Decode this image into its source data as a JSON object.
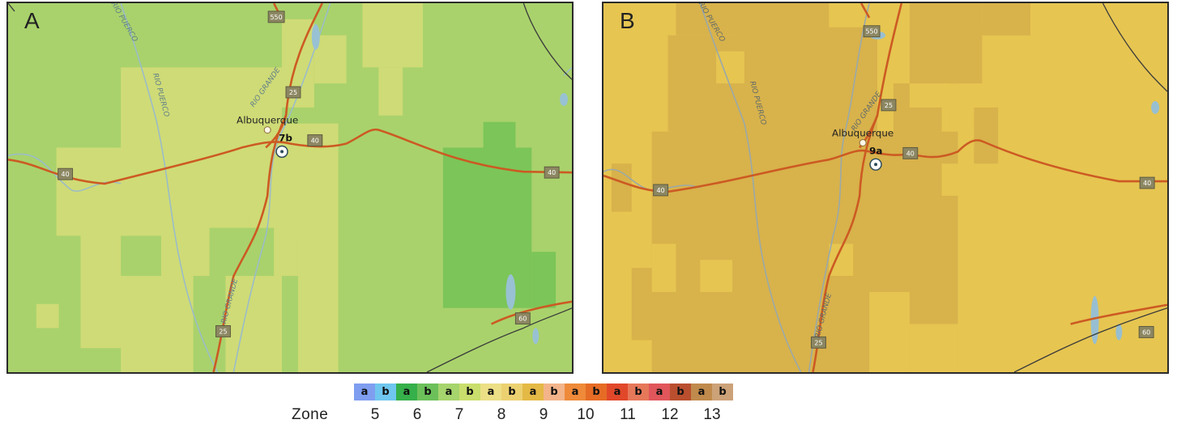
{
  "panel_a": {
    "letter": "A",
    "city": "Albuquerque",
    "zone_marker": "7b",
    "interstate_40": "40",
    "interstate_25": "25",
    "route_550": "550",
    "route_60": "60",
    "river_grande": "RIO GRANDE",
    "river_puerco": "RIO PUERCO",
    "base_color": "#a9d26c",
    "light_color": "#cfdb76",
    "dark_color": "#7cc558"
  },
  "panel_b": {
    "letter": "B",
    "city": "Albuquerque",
    "zone_marker": "9a",
    "interstate_40": "40",
    "interstate_25": "25",
    "route_550": "550",
    "route_60": "60",
    "river_grande": "RIO GRANDE",
    "river_puerco": "RIO PUERCO",
    "base_color": "#e6c551",
    "dark_color": "#d8b24b"
  },
  "legend": {
    "label": "Zone",
    "swatches": [
      {
        "sub": "a",
        "color": "#7f9ef0"
      },
      {
        "sub": "b",
        "color": "#6fc6ef"
      },
      {
        "sub": "a",
        "color": "#36b04a"
      },
      {
        "sub": "b",
        "color": "#6cc05a"
      },
      {
        "sub": "a",
        "color": "#a6d46d"
      },
      {
        "sub": "b",
        "color": "#c9de6c"
      },
      {
        "sub": "a",
        "color": "#ecdf86"
      },
      {
        "sub": "b",
        "color": "#ecd171"
      },
      {
        "sub": "a",
        "color": "#e4b946"
      },
      {
        "sub": "b",
        "color": "#f3b48a"
      },
      {
        "sub": "a",
        "color": "#ee8a39"
      },
      {
        "sub": "b",
        "color": "#e66c26"
      },
      {
        "sub": "a",
        "color": "#e1482a"
      },
      {
        "sub": "b",
        "color": "#e6785a"
      },
      {
        "sub": "a",
        "color": "#e0565a"
      },
      {
        "sub": "b",
        "color": "#b94f2e"
      },
      {
        "sub": "a",
        "color": "#c08a4c"
      },
      {
        "sub": "b",
        "color": "#cca278"
      }
    ],
    "zones": [
      "5",
      "6",
      "7",
      "8",
      "9",
      "10",
      "11",
      "12",
      "13"
    ]
  }
}
